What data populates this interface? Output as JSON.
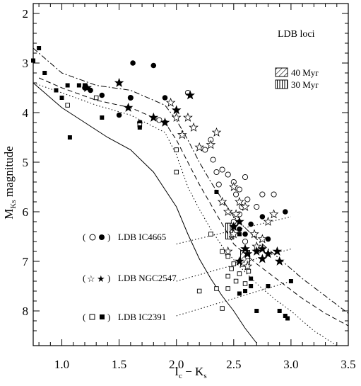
{
  "chart_data": {
    "type": "scatter",
    "xlabel": "I_c − K_s",
    "xlabel_main": "I",
    "xlabel_sub1": "c",
    "xlabel_mid": " − K",
    "xlabel_sub2": "s",
    "ylabel_main": "M",
    "ylabel_sub": "Ks",
    "ylabel_rest": " magnitude",
    "xlim": [
      0.75,
      3.5
    ],
    "ylim": [
      8.7,
      1.8
    ],
    "y_inverted": true,
    "x_ticks": [
      1.0,
      1.5,
      2.0,
      2.5,
      3.0,
      3.5
    ],
    "x_tick_labels": [
      "1.0",
      "1.5",
      "2.0",
      "2.5",
      "3.0",
      "3.5"
    ],
    "y_ticks": [
      2,
      3,
      4,
      5,
      6,
      7,
      8
    ],
    "y_tick_labels": [
      "2",
      "3",
      "4",
      "5",
      "6",
      "7",
      "8"
    ],
    "annotations": {
      "ldb_loci": "LDB loci",
      "age40": "40 Myr",
      "age30": "30 Myr",
      "ic4665": "LDB IC4665",
      "ngc2547": "LDB NGC2547",
      "ic2391": "LDB IC2391"
    },
    "ldb_boxes": [
      {
        "name": "40 Myr",
        "x": [
          2.56,
          2.64
        ],
        "y": [
          6.78,
          7.1
        ],
        "pattern": "hatch"
      },
      {
        "name": "30 Myr",
        "x": [
          2.43,
          2.5
        ],
        "y": [
          6.23,
          6.55
        ],
        "pattern": "vertical"
      }
    ],
    "curves": [
      {
        "style": "solid",
        "x": [
          0.75,
          1.0,
          1.2,
          1.4,
          1.6,
          1.8,
          2.0,
          2.1,
          2.2,
          2.3,
          2.4,
          2.5,
          2.6,
          2.7
        ],
        "y": [
          3.4,
          3.9,
          4.2,
          4.5,
          4.75,
          5.2,
          5.9,
          6.45,
          6.95,
          7.35,
          7.7,
          8.0,
          8.35,
          8.65
        ]
      },
      {
        "style": "dotted",
        "x": [
          0.75,
          1.0,
          1.3,
          1.6,
          1.9,
          2.0,
          2.1,
          2.2,
          2.3,
          2.4,
          2.55,
          2.7,
          2.85,
          3.0,
          3.2,
          3.4
        ],
        "y": [
          3.4,
          3.6,
          3.85,
          4.05,
          4.4,
          4.85,
          5.5,
          5.95,
          6.35,
          6.7,
          7.1,
          7.45,
          7.75,
          8.0,
          8.4,
          8.7
        ]
      },
      {
        "style": "dashed",
        "x": [
          0.8,
          1.0,
          1.3,
          1.6,
          1.9,
          2.0,
          2.1,
          2.2,
          2.3,
          2.4,
          2.5,
          2.7,
          2.9,
          3.1,
          3.3,
          3.5
        ],
        "y": [
          3.3,
          3.5,
          3.75,
          3.9,
          4.2,
          4.55,
          5.0,
          5.45,
          5.85,
          6.25,
          6.65,
          7.05,
          7.4,
          7.75,
          8.05,
          8.3
        ]
      },
      {
        "style": "dashdot",
        "x": [
          0.75,
          1.0,
          1.3,
          1.6,
          1.9,
          2.0,
          2.1,
          2.2,
          2.3,
          2.4,
          2.5,
          2.7,
          2.9,
          3.1,
          3.3,
          3.5
        ],
        "y": [
          2.7,
          3.2,
          3.45,
          3.55,
          3.85,
          4.15,
          4.55,
          5.0,
          5.4,
          5.75,
          6.1,
          6.55,
          6.95,
          7.35,
          7.7,
          8.05
        ]
      }
    ],
    "ldb_lines": [
      {
        "x": [
          2.0,
          3.0
        ],
        "y": [
          6.65,
          6.1
        ]
      },
      {
        "x": [
          2.0,
          3.0
        ],
        "y": [
          7.4,
          6.75
        ]
      },
      {
        "x": [
          2.0,
          3.0
        ],
        "y": [
          8.1,
          7.4
        ]
      }
    ],
    "series": [
      {
        "name": "IC4665 open",
        "marker": "open-circle",
        "points": [
          [
            1.6,
            3.7
          ],
          [
            1.85,
            4.15
          ],
          [
            2.1,
            3.6
          ],
          [
            2.25,
            4.75
          ],
          [
            2.3,
            4.55
          ],
          [
            2.32,
            4.95
          ],
          [
            2.35,
            5.2
          ],
          [
            2.37,
            5.45
          ],
          [
            2.4,
            5.15
          ],
          [
            2.45,
            5.25
          ],
          [
            2.5,
            5.4
          ],
          [
            2.52,
            5.65
          ],
          [
            2.55,
            5.55
          ],
          [
            2.57,
            5.9
          ],
          [
            2.6,
            5.3
          ],
          [
            2.62,
            5.75
          ],
          [
            2.55,
            6.05
          ],
          [
            2.75,
            5.65
          ],
          [
            2.85,
            5.65
          ],
          [
            2.7,
            5.9
          ],
          [
            2.5,
            6.2
          ],
          [
            2.6,
            6.6
          ],
          [
            2.62,
            6.9
          ]
        ]
      },
      {
        "name": "IC4665 filled",
        "marker": "filled-circle",
        "points": [
          [
            1.2,
            3.5
          ],
          [
            1.25,
            3.55
          ],
          [
            1.35,
            3.65
          ],
          [
            1.5,
            4.05
          ],
          [
            1.6,
            3.7
          ],
          [
            1.62,
            3.0
          ],
          [
            1.68,
            4.2
          ],
          [
            1.8,
            3.05
          ],
          [
            1.9,
            3.7
          ],
          [
            2.5,
            6.3
          ],
          [
            2.55,
            6.35
          ],
          [
            2.65,
            6.25
          ],
          [
            2.75,
            6.1
          ],
          [
            2.8,
            6.55
          ],
          [
            2.95,
            6.0
          ],
          [
            2.6,
            6.45
          ]
        ]
      },
      {
        "name": "NGC2547 open",
        "marker": "open-star",
        "points": [
          [
            1.95,
            3.8
          ],
          [
            2.0,
            4.1
          ],
          [
            2.05,
            4.45
          ],
          [
            2.1,
            4.1
          ],
          [
            2.15,
            4.3
          ],
          [
            2.2,
            4.7
          ],
          [
            2.3,
            4.65
          ],
          [
            2.35,
            4.4
          ],
          [
            2.4,
            5.8
          ],
          [
            2.45,
            6.0
          ],
          [
            2.5,
            5.5
          ],
          [
            2.55,
            5.8
          ],
          [
            2.6,
            5.9
          ],
          [
            2.52,
            6.05
          ],
          [
            2.45,
            6.8
          ],
          [
            2.5,
            6.45
          ],
          [
            2.68,
            6.45
          ],
          [
            2.75,
            6.55
          ],
          [
            2.8,
            6.2
          ],
          [
            2.85,
            6.05
          ],
          [
            2.62,
            7.1
          ],
          [
            2.7,
            6.7
          ]
        ]
      },
      {
        "name": "NGC2547 filled",
        "marker": "filled-star",
        "points": [
          [
            1.22,
            3.5
          ],
          [
            1.5,
            3.4
          ],
          [
            1.58,
            3.9
          ],
          [
            1.8,
            4.1
          ],
          [
            1.9,
            4.2
          ],
          [
            2.0,
            3.95
          ],
          [
            2.12,
            3.65
          ],
          [
            2.5,
            6.3
          ],
          [
            2.55,
            6.2
          ],
          [
            2.6,
            6.75
          ],
          [
            2.7,
            6.8
          ],
          [
            2.75,
            6.75
          ],
          [
            2.8,
            6.85
          ],
          [
            2.75,
            6.95
          ],
          [
            2.88,
            6.8
          ],
          [
            2.9,
            7.0
          ],
          [
            2.55,
            7.0
          ],
          [
            2.62,
            6.85
          ]
        ]
      },
      {
        "name": "IC2391 open",
        "marker": "open-square",
        "points": [
          [
            1.05,
            3.85
          ],
          [
            1.3,
            3.7
          ],
          [
            1.68,
            4.25
          ],
          [
            2.0,
            4.75
          ],
          [
            2.0,
            5.2
          ],
          [
            2.3,
            6.45
          ],
          [
            2.35,
            7.55
          ],
          [
            2.4,
            6.8
          ],
          [
            2.45,
            6.9
          ],
          [
            2.48,
            7.15
          ],
          [
            2.5,
            7.05
          ],
          [
            2.45,
            7.3
          ],
          [
            2.55,
            7.25
          ],
          [
            2.6,
            7.45
          ],
          [
            2.52,
            7.4
          ],
          [
            2.45,
            7.55
          ],
          [
            2.63,
            7.2
          ],
          [
            2.4,
            7.95
          ],
          [
            2.2,
            7.6
          ]
        ]
      },
      {
        "name": "IC2391 filled",
        "marker": "filled-square",
        "points": [
          [
            0.75,
            2.95
          ],
          [
            0.8,
            2.7
          ],
          [
            0.85,
            3.2
          ],
          [
            0.95,
            3.55
          ],
          [
            1.0,
            3.7
          ],
          [
            1.05,
            3.45
          ],
          [
            1.07,
            4.5
          ],
          [
            1.15,
            3.45
          ],
          [
            1.2,
            3.45
          ],
          [
            1.35,
            4.1
          ],
          [
            1.68,
            4.3
          ],
          [
            1.9,
            4.2
          ],
          [
            2.35,
            5.6
          ],
          [
            2.55,
            6.45
          ],
          [
            2.55,
            7.65
          ],
          [
            2.6,
            7.6
          ],
          [
            2.65,
            7.5
          ],
          [
            2.7,
            8.0
          ],
          [
            2.8,
            7.5
          ],
          [
            2.9,
            8.0
          ],
          [
            2.95,
            8.1
          ],
          [
            2.97,
            8.15
          ],
          [
            3.0,
            7.4
          ],
          [
            2.65,
            7.35
          ]
        ]
      }
    ]
  }
}
